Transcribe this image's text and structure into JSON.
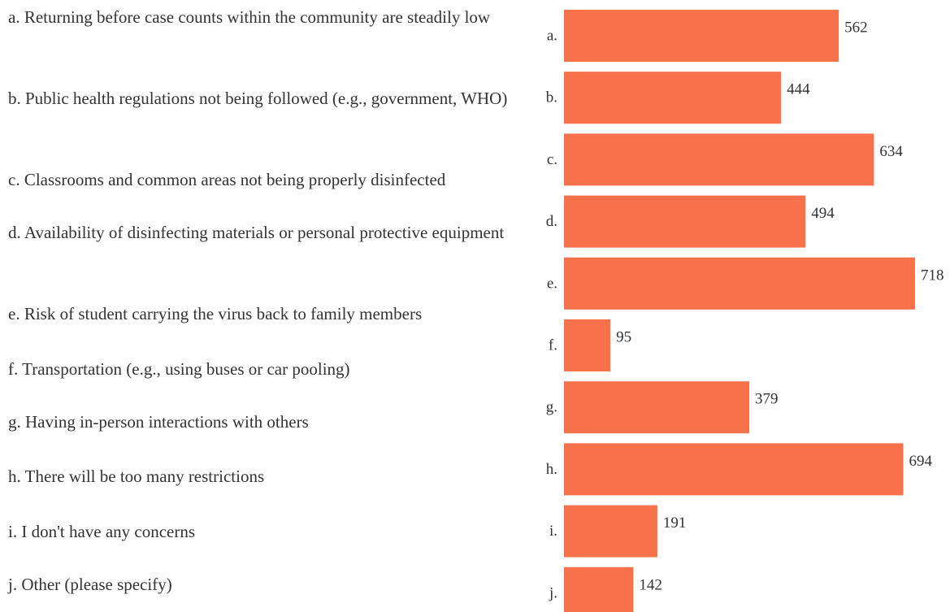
{
  "chart_data": {
    "type": "bar",
    "orientation": "horizontal",
    "categories": [
      "a.",
      "b.",
      "c.",
      "d.",
      "e.",
      "f.",
      "g.",
      "h.",
      "i.",
      "j."
    ],
    "values": [
      562,
      444,
      634,
      494,
      718,
      95,
      379,
      694,
      191,
      142
    ],
    "bar_color": "#f7714a",
    "legend": [
      "a. Returning before case counts within the community are steadily low",
      "b. Public health regulations not being followed (e.g., government, WHO)",
      "c. Classrooms and common areas not being properly disinfected",
      "d. Availability of disinfecting materials or personal protective equipment",
      "e. Risk of student carrying the virus back to family members",
      "f. Transportation (e.g., using buses or car pooling)",
      "g. Having in-person interactions with others",
      "h. There will be too many restrictions",
      "i. I don't have any concerns",
      "j. Other (please specify)"
    ]
  }
}
